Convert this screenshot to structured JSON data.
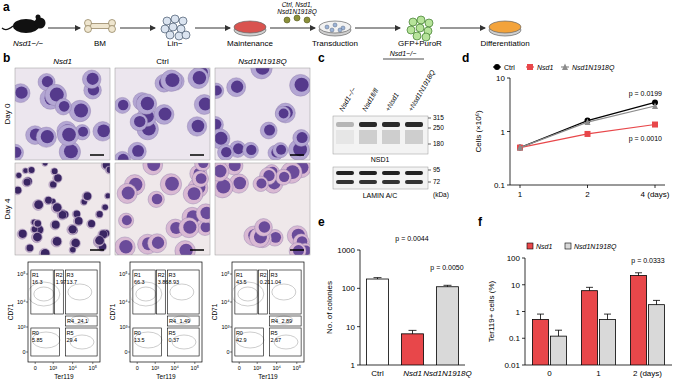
{
  "panel_labels": [
    "a",
    "b",
    "c",
    "d",
    "e",
    "f"
  ],
  "schematic": {
    "steps": [
      "Nsd1−/−",
      "BM",
      "Lin−",
      "Maintenance",
      "Transduction",
      "GFP+PuroR",
      "Differentiation"
    ],
    "constructs": [
      "Ctrl, Nsd1,",
      "Nsd1N1918Q"
    ]
  },
  "micrographs": {
    "columns": [
      "Nsd1",
      "Ctrl",
      "Nsd1N1918Q"
    ],
    "rows": [
      "Day 0",
      "Day 4"
    ]
  },
  "flow": {
    "x_label": "Ter119",
    "y_label": "CD71",
    "x_tick_labels": [
      "0",
      "10³",
      "10⁴",
      "10⁵"
    ],
    "y_tick_labels": [
      "0",
      "10³",
      "10⁴",
      "10⁵"
    ],
    "gates": [
      "R1",
      "R2",
      "R3",
      "R4",
      "R0",
      "R5"
    ],
    "plots": [
      {
        "values": [
          16.3,
          1.97,
          13.7,
          24.1,
          5.85,
          29.4
        ]
      },
      {
        "values": [
          66.3,
          3.86,
          8.93,
          1.49,
          13.5,
          0.37
        ]
      },
      {
        "values": [
          43.5,
          0.21,
          1.04,
          2.89,
          42.9,
          2.67
        ]
      }
    ]
  },
  "blot": {
    "group_label": "Nsd1−/−",
    "lanes": [
      "Nsd1−/−",
      "Nsd1fl/fl",
      "+Nsd1",
      "+Nsd1N1918Q"
    ],
    "proteins": [
      "NSD1",
      "LAMIN A/C"
    ],
    "markers": [
      315,
      250,
      180,
      95,
      72
    ],
    "unit": "(kDa)"
  },
  "chart_data": [
    {
      "type": "line",
      "categories": [
        "1",
        "2",
        "4 (days)"
      ],
      "series": [
        {
          "name": "Ctrl",
          "color": "#000000",
          "marker": "circle",
          "values": [
            0.5,
            1.6,
            3.5
          ]
        },
        {
          "name": "Nsd1",
          "color": "#e8474a",
          "marker": "square",
          "values": [
            0.5,
            0.9,
            1.35
          ]
        },
        {
          "name": "Nsd1N1918Q",
          "color": "#8c8c8c",
          "marker": "triangle",
          "values": [
            0.5,
            1.5,
            3.0
          ]
        }
      ],
      "log": "y",
      "ylim": [
        0.1,
        10
      ],
      "yticks": [
        0.1,
        1,
        10
      ],
      "y_label": "Cells (×10⁶)",
      "legend": "top-left",
      "annotations": [
        "p = 0.0199",
        "p = 0.0010"
      ]
    },
    {
      "type": "bar",
      "categories": [
        "Ctrl",
        "Nsd1",
        "Nsd1N1918Q"
      ],
      "values": [
        175,
        6.5,
        110
      ],
      "errors": [
        15,
        1.5,
        10
      ],
      "colors": [
        "#ffffff",
        "#e8474a",
        "#d9d9d9"
      ],
      "log": "y",
      "ylim": [
        1,
        1000
      ],
      "yticks": [
        1,
        10,
        100,
        1000
      ],
      "y_label": "No. of colonies",
      "annotations": [
        "p = 0.0044",
        "p = 0.0050"
      ]
    },
    {
      "type": "bar",
      "categories": [
        "0",
        "1",
        "2 (days)"
      ],
      "series": [
        {
          "name": "Nsd1",
          "color": "#e8474a",
          "values": [
            0.5,
            6,
            22
          ],
          "errors": [
            0.3,
            2,
            6
          ]
        },
        {
          "name": "Nsd1N1918Q",
          "color": "#d9d9d9",
          "values": [
            0.12,
            0.5,
            1.8
          ],
          "errors": [
            0.08,
            0.3,
            0.8
          ]
        }
      ],
      "log": "y",
      "ylim": [
        0.01,
        100
      ],
      "yticks": [
        0.01,
        0.1,
        1,
        10,
        100
      ],
      "y_label": "Ter119+ cells (%)",
      "legend": "top-left",
      "annotations": [
        "p = 0.0333"
      ]
    }
  ]
}
